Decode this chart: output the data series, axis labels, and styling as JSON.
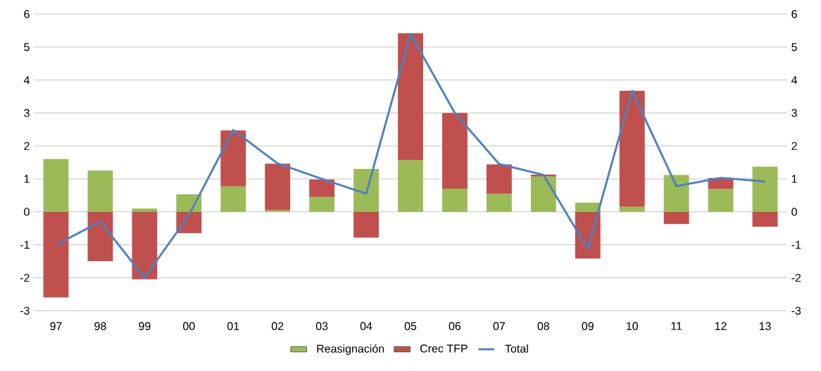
{
  "chart_data": {
    "type": "bar",
    "stacked": true,
    "categories": [
      "97",
      "98",
      "99",
      "00",
      "01",
      "02",
      "03",
      "04",
      "05",
      "06",
      "07",
      "08",
      "09",
      "10",
      "11",
      "12",
      "13"
    ],
    "series": [
      {
        "name": "Reasignación",
        "color": "#9bbb59",
        "values": [
          1.6,
          1.25,
          0.1,
          0.53,
          0.77,
          0.05,
          0.45,
          1.3,
          1.57,
          0.7,
          0.55,
          1.07,
          0.28,
          0.15,
          1.12,
          0.69,
          1.37
        ]
      },
      {
        "name": "Crec TFP",
        "color": "#c0504d",
        "values": [
          -2.6,
          -1.5,
          -2.05,
          -0.65,
          1.7,
          1.41,
          0.53,
          -0.78,
          3.85,
          2.3,
          0.89,
          0.06,
          -1.42,
          3.52,
          -0.37,
          0.34,
          -0.45
        ]
      },
      {
        "name": "Total",
        "type": "line",
        "color": "#4f81bd",
        "values": [
          -1.0,
          -0.3,
          -2.0,
          -0.1,
          2.48,
          1.47,
          1.0,
          0.55,
          5.4,
          3.0,
          1.45,
          1.12,
          -1.13,
          3.67,
          0.78,
          1.03,
          0.92
        ]
      }
    ],
    "ylim": [
      -3,
      6
    ],
    "yticks": [
      -3,
      -2,
      -1,
      0,
      1,
      2,
      3,
      4,
      5,
      6
    ],
    "y2lim": [
      -3,
      6
    ],
    "y2ticks": [
      -3,
      -2,
      -1,
      0,
      1,
      2,
      3,
      4,
      5,
      6
    ],
    "grid": "y",
    "legend": "bottom"
  }
}
